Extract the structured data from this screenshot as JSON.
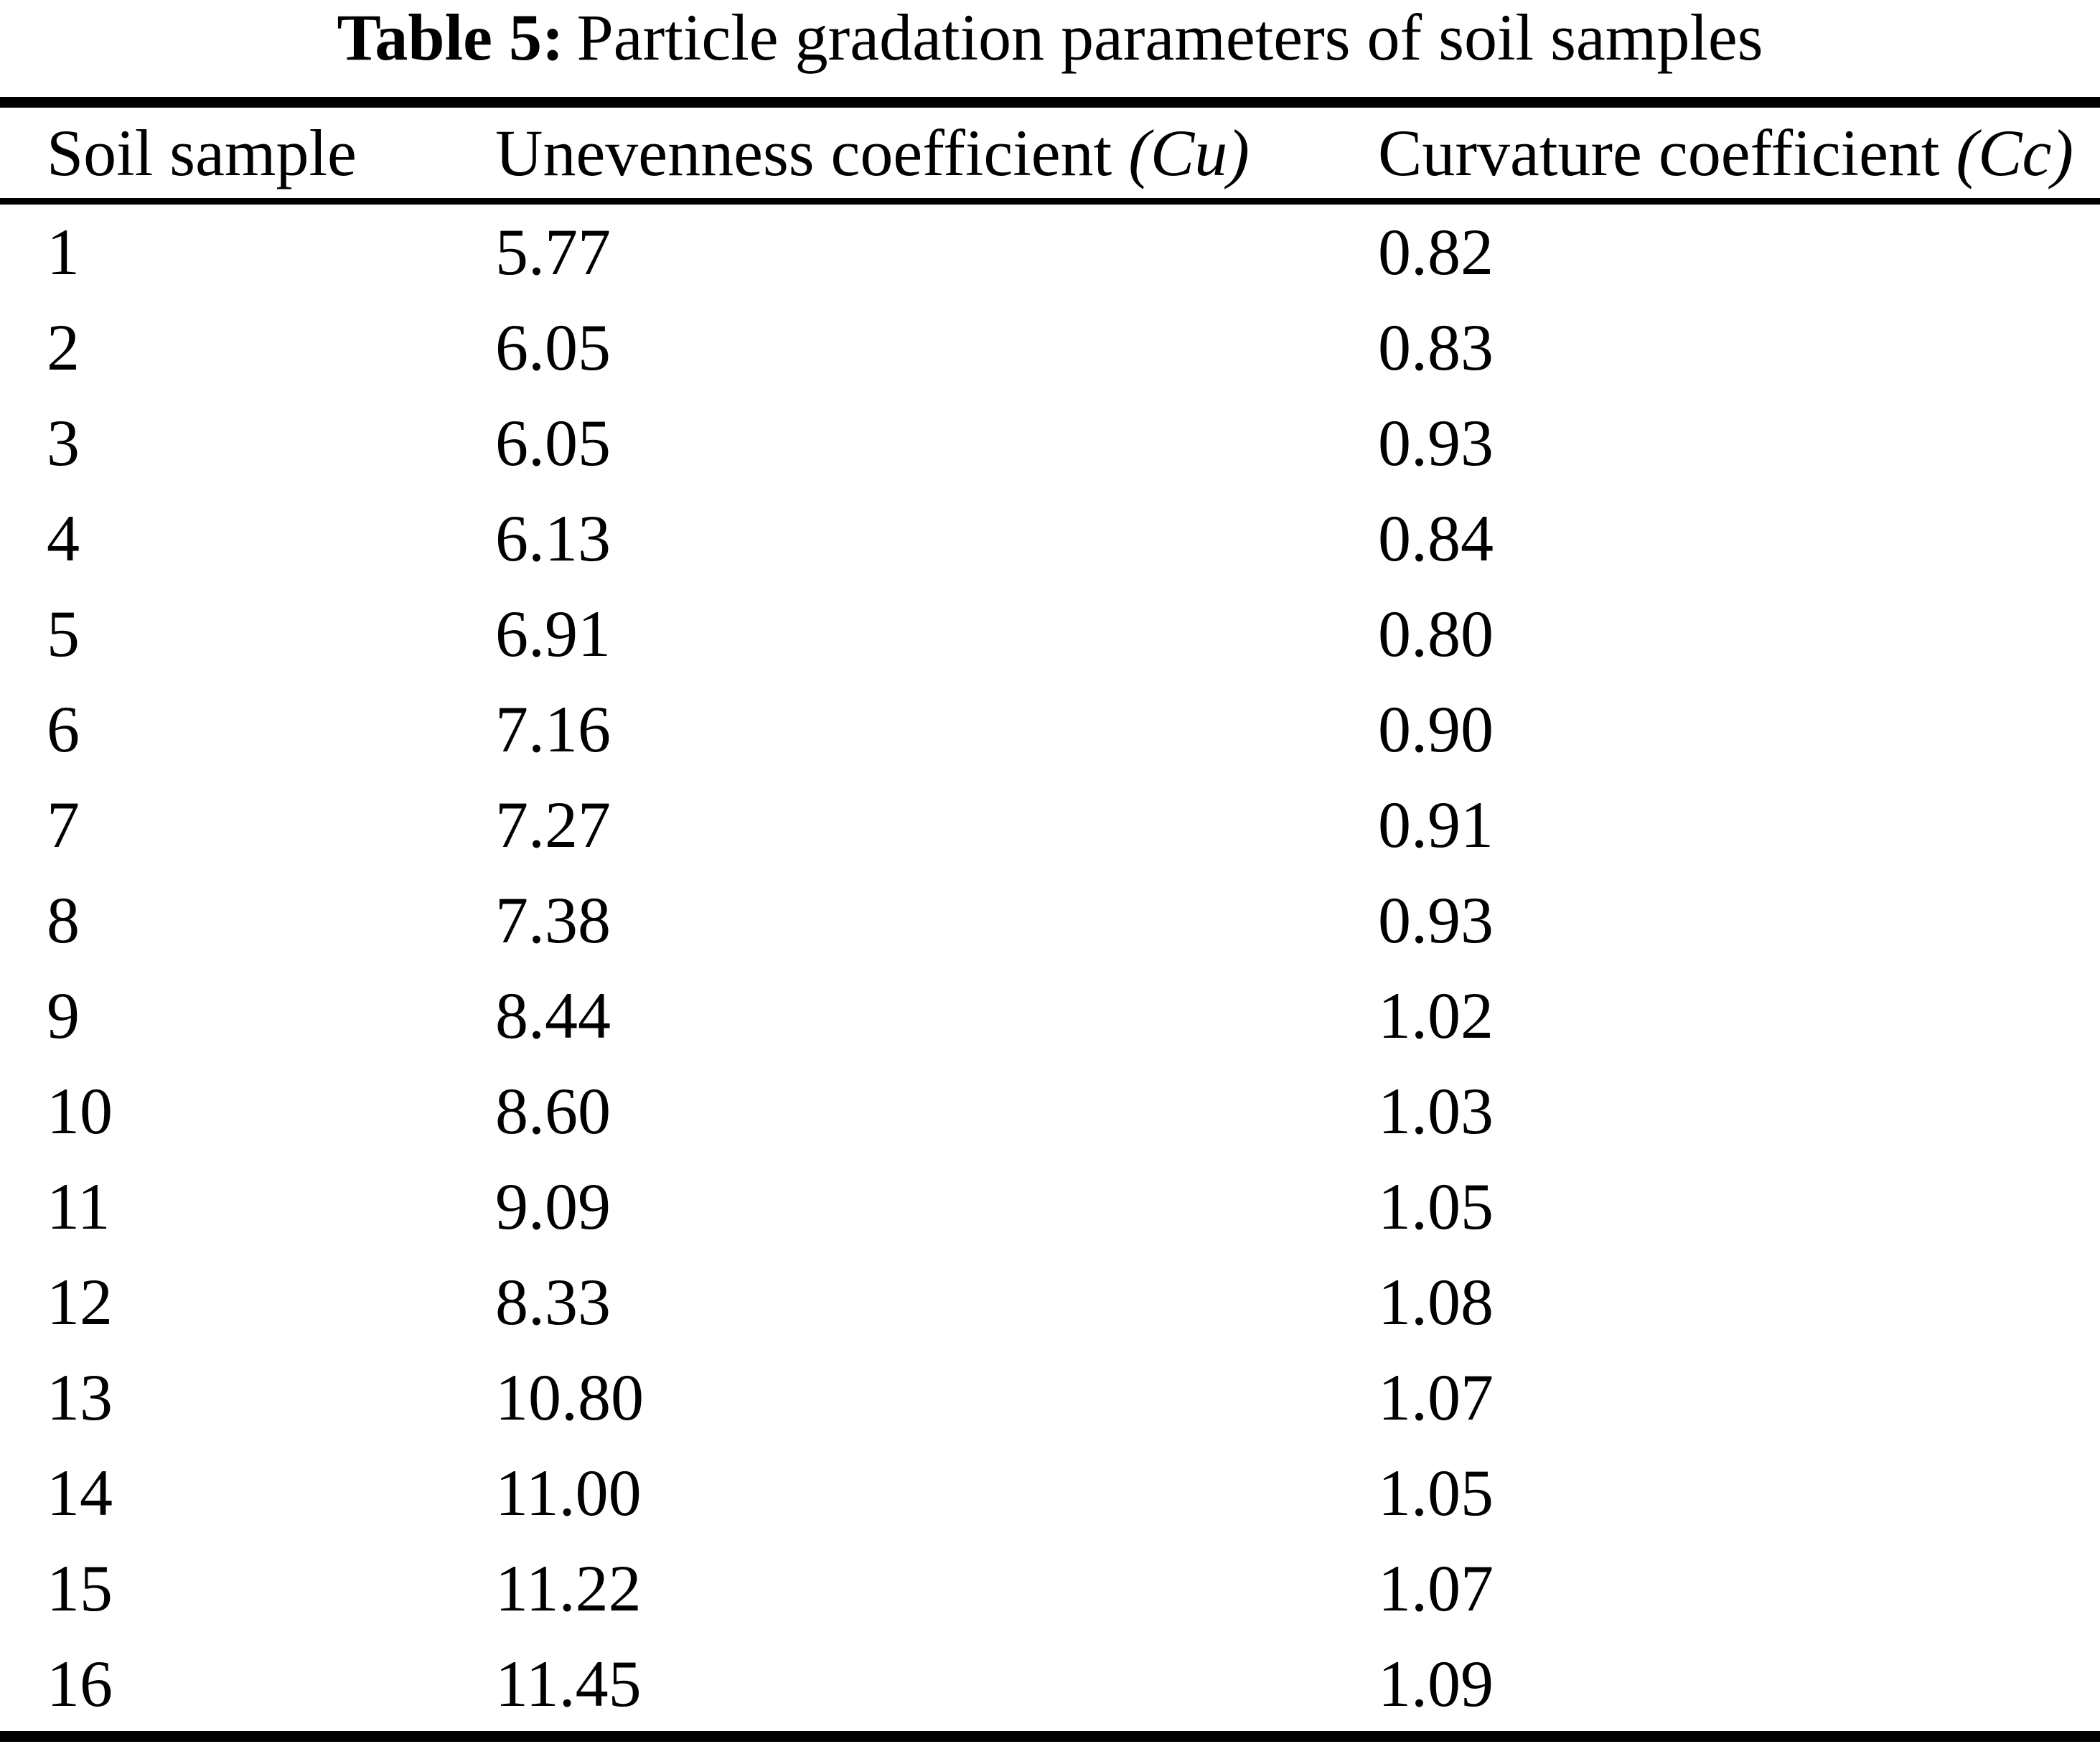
{
  "page": {
    "title": {
      "label": "Table 5:",
      "text": "Particle gradation parameters of soil samples"
    }
  },
  "table": {
    "headers": {
      "col1": "Soil sample",
      "col2_text": "Unevenness coefficient ",
      "col2_symbol": "(Cu)",
      "col3_text": "Curvature coefficient ",
      "col3_symbol": "(Cc)"
    },
    "rows": [
      {
        "sample": "1",
        "cu": "5.77",
        "cc": "0.82"
      },
      {
        "sample": "2",
        "cu": "6.05",
        "cc": "0.83"
      },
      {
        "sample": "3",
        "cu": "6.05",
        "cc": "0.93"
      },
      {
        "sample": "4",
        "cu": "6.13",
        "cc": "0.84"
      },
      {
        "sample": "5",
        "cu": "6.91",
        "cc": "0.80"
      },
      {
        "sample": "6",
        "cu": "7.16",
        "cc": "0.90"
      },
      {
        "sample": "7",
        "cu": "7.27",
        "cc": "0.91"
      },
      {
        "sample": "8",
        "cu": "7.38",
        "cc": "0.93"
      },
      {
        "sample": "9",
        "cu": "8.44",
        "cc": "1.02"
      },
      {
        "sample": "10",
        "cu": "8.60",
        "cc": "1.03"
      },
      {
        "sample": "11",
        "cu": "9.09",
        "cc": "1.05"
      },
      {
        "sample": "12",
        "cu": "8.33",
        "cc": "1.08"
      },
      {
        "sample": "13",
        "cu": "10.80",
        "cc": "1.07"
      },
      {
        "sample": "14",
        "cu": "11.00",
        "cc": "1.05"
      },
      {
        "sample": "15",
        "cu": "11.22",
        "cc": "1.07"
      },
      {
        "sample": "16",
        "cu": "11.45",
        "cc": "1.09"
      }
    ]
  }
}
